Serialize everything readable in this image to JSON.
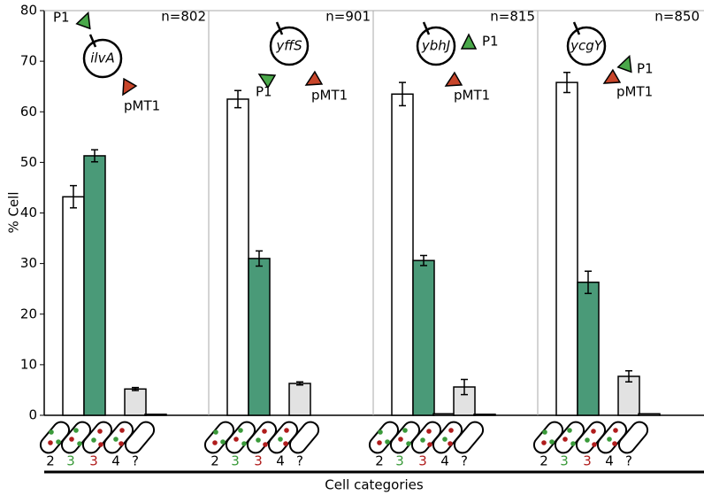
{
  "chart_data": {
    "type": "bar",
    "ylabel": "% Cell",
    "xlabel": "Cell categories",
    "ylim": [
      0,
      80
    ],
    "yticks": [
      0,
      10,
      20,
      30,
      40,
      50,
      60,
      70,
      80
    ],
    "categories": [
      "2",
      "3",
      "3",
      "4",
      "?"
    ],
    "category_colors": [
      "#000000",
      "#3a9a3a",
      "#b01c1c",
      "#000000",
      "#000000"
    ],
    "bar_colors": [
      "#ffffff",
      "#4a9a78",
      "#ffffff",
      "#e2e2e2",
      "#ffffff"
    ],
    "panels": [
      {
        "gene": "ilvA",
        "n": "n=802",
        "promoter": "P1",
        "plasmid": "pMT1",
        "values": [
          43.2,
          51.3,
          0,
          5.2,
          0.2
        ],
        "errors": [
          2.2,
          1.2,
          0,
          0.3,
          0
        ]
      },
      {
        "gene": "yffS",
        "n": "n=901",
        "promoter": "P1",
        "plasmid": "pMT1",
        "values": [
          62.5,
          31,
          0,
          6.3,
          0
        ],
        "errors": [
          1.7,
          1.5,
          0,
          0.3,
          0
        ]
      },
      {
        "gene": "ybhJ",
        "n": "n=815",
        "promoter": "P1",
        "plasmid": "pMT1",
        "values": [
          63.5,
          30.6,
          0.3,
          5.6,
          0.2
        ],
        "errors": [
          2.3,
          1,
          0,
          1.5,
          0
        ]
      },
      {
        "gene": "ycgY",
        "n": "n=850",
        "promoter": "P1",
        "plasmid": "pMT1",
        "values": [
          65.8,
          26.3,
          0,
          7.7,
          0.3
        ],
        "errors": [
          2,
          2.2,
          0,
          1.1,
          0
        ]
      }
    ]
  }
}
